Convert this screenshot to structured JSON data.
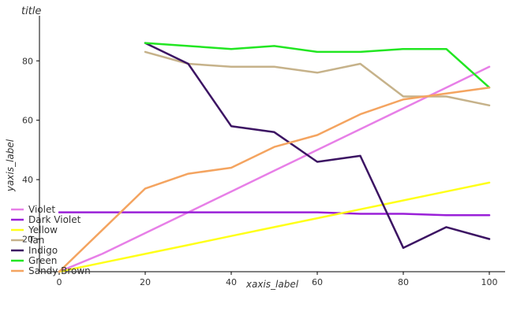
{
  "chart_data": {
    "type": "line",
    "title": "title",
    "xlabel": "xaxis_label",
    "ylabel": "yaxis_label",
    "xlim": [
      0,
      100
    ],
    "ylim": [
      9,
      92
    ],
    "xticks": [
      0,
      20,
      40,
      60,
      80,
      100
    ],
    "yticks": [
      20,
      40,
      60,
      80
    ],
    "grid": false,
    "legend_position": "left",
    "x": [
      0,
      10,
      20,
      30,
      40,
      50,
      60,
      70,
      80,
      90,
      100
    ],
    "series": [
      {
        "name": "Violet",
        "color": "#e77fe7",
        "values": [
          9,
          15,
          22,
          29,
          36,
          43,
          50,
          57,
          64,
          71,
          78
        ]
      },
      {
        "name": "Dark Violet",
        "color": "#9a20d8",
        "values": [
          29,
          29,
          29,
          29,
          29,
          29,
          29,
          28.5,
          28.5,
          28,
          28
        ]
      },
      {
        "name": "Yellow",
        "color": "#ffff19",
        "values": [
          9,
          12,
          15,
          18,
          21,
          24,
          27,
          30,
          33,
          36,
          39
        ]
      },
      {
        "name": "Tan",
        "color": "#c6b28a",
        "values": [
          null,
          null,
          83,
          79,
          78,
          78,
          76,
          79,
          68,
          68,
          65
        ]
      },
      {
        "name": "Indigo",
        "color": "#3c1463",
        "values": [
          null,
          null,
          86,
          79,
          58,
          56,
          46,
          48,
          17,
          24,
          20
        ]
      },
      {
        "name": "Green",
        "color": "#22e622",
        "values": [
          null,
          null,
          86,
          85,
          84,
          85,
          83,
          83,
          84,
          84,
          71
        ]
      },
      {
        "name": "Sandy Brown",
        "color": "#f4a460",
        "values": [
          9,
          23,
          37,
          42,
          44,
          51,
          55,
          62,
          67,
          69,
          71
        ]
      }
    ]
  }
}
